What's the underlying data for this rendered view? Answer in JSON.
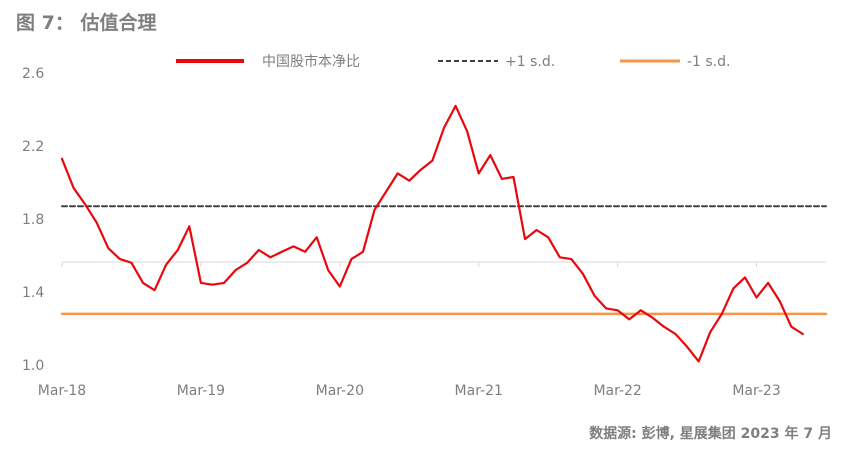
{
  "figure": {
    "title": "图 7： 估值合理",
    "source": "数据源: 彭博, 星展集团 2023 年 7 月"
  },
  "chart_data": {
    "type": "line",
    "title": "估值合理",
    "xlabel": "",
    "ylabel": "",
    "ylim": [
      1.0,
      2.6
    ],
    "yticks": [
      "2.6",
      "2.2",
      "1.8",
      "1.4",
      "1.0"
    ],
    "ytick_values": [
      2.6,
      2.2,
      1.8,
      1.4,
      1.0
    ],
    "xlim": [
      "2018-03",
      "2023-09"
    ],
    "xticks": [
      "Mar-18",
      "Mar-19",
      "Mar-20",
      "Mar-21",
      "Mar-22",
      "Mar-23"
    ],
    "xtick_dates": [
      "2018-03",
      "2019-03",
      "2020-03",
      "2021-03",
      "2022-03",
      "2023-03"
    ],
    "grid": false,
    "legend_position": "top",
    "series": [
      {
        "name": "中国股市本净比",
        "color": "#e8080e",
        "style": "solid",
        "x": [
          "2018-03",
          "2018-04",
          "2018-05",
          "2018-06",
          "2018-07",
          "2018-08",
          "2018-09",
          "2018-10",
          "2018-11",
          "2018-12",
          "2019-01",
          "2019-02",
          "2019-03",
          "2019-04",
          "2019-05",
          "2019-06",
          "2019-07",
          "2019-08",
          "2019-09",
          "2019-10",
          "2019-11",
          "2019-12",
          "2020-01",
          "2020-02",
          "2020-03",
          "2020-04",
          "2020-05",
          "2020-06",
          "2020-07",
          "2020-08",
          "2020-09",
          "2020-10",
          "2020-11",
          "2020-12",
          "2021-01",
          "2021-02",
          "2021-03",
          "2021-04",
          "2021-05",
          "2021-06",
          "2021-07",
          "2021-08",
          "2021-09",
          "2021-10",
          "2021-11",
          "2021-12",
          "2022-01",
          "2022-02",
          "2022-03",
          "2022-04",
          "2022-05",
          "2022-06",
          "2022-07",
          "2022-08",
          "2022-09",
          "2022-10",
          "2022-11",
          "2022-12",
          "2023-01",
          "2023-02",
          "2023-03",
          "2023-04",
          "2023-05",
          "2023-06",
          "2023-07"
        ],
        "values": [
          2.13,
          1.97,
          1.88,
          1.78,
          1.64,
          1.58,
          1.56,
          1.45,
          1.41,
          1.55,
          1.63,
          1.76,
          1.45,
          1.44,
          1.45,
          1.52,
          1.56,
          1.63,
          1.59,
          1.62,
          1.65,
          1.62,
          1.7,
          1.52,
          1.43,
          1.58,
          1.62,
          1.85,
          1.95,
          2.05,
          2.01,
          2.07,
          2.12,
          2.3,
          2.42,
          2.28,
          2.05,
          2.15,
          2.02,
          2.03,
          1.69,
          1.74,
          1.7,
          1.59,
          1.58,
          1.5,
          1.38,
          1.31,
          1.3,
          1.25,
          1.3,
          1.26,
          1.21,
          1.17,
          1.1,
          1.02,
          1.18,
          1.28,
          1.42,
          1.48,
          1.37,
          1.45,
          1.35,
          1.21,
          1.17
        ]
      },
      {
        "name": "+1 s.d.",
        "color": "#404040",
        "style": "dashed",
        "x": [
          "2018-03",
          "2023-09"
        ],
        "values": [
          1.87,
          1.87
        ]
      },
      {
        "name": "-1 s.d.",
        "color": "#f79646",
        "style": "solid",
        "x": [
          "2018-03",
          "2023-09"
        ],
        "values": [
          1.28,
          1.28
        ]
      }
    ]
  }
}
